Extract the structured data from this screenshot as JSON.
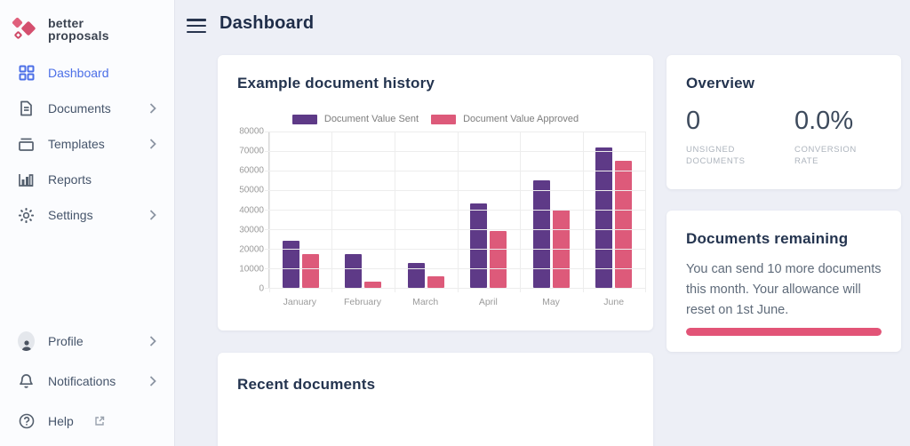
{
  "app": {
    "brand_line1": "better",
    "brand_line2": "proposals"
  },
  "header": {
    "title": "Dashboard"
  },
  "sidebar": {
    "items": [
      {
        "label": "Dashboard",
        "icon": "grid-icon",
        "active": true,
        "chevron": false
      },
      {
        "label": "Documents",
        "icon": "document-icon",
        "active": false,
        "chevron": true
      },
      {
        "label": "Templates",
        "icon": "archive-icon",
        "active": false,
        "chevron": true
      },
      {
        "label": "Reports",
        "icon": "bar-chart-icon",
        "active": false,
        "chevron": false
      },
      {
        "label": "Settings",
        "icon": "gear-icon",
        "active": false,
        "chevron": true
      }
    ],
    "bottom_items": [
      {
        "label": "Profile",
        "icon": "avatar-icon",
        "chevron": true,
        "external": false
      },
      {
        "label": "Notifications",
        "icon": "bell-icon",
        "chevron": true,
        "external": false
      },
      {
        "label": "Help",
        "icon": "help-icon",
        "chevron": false,
        "external": true
      }
    ]
  },
  "chart_card": {
    "title": "Example document history"
  },
  "chart_data": {
    "type": "bar",
    "title": "Example document history",
    "categories": [
      "January",
      "February",
      "March",
      "April",
      "May",
      "June"
    ],
    "series": [
      {
        "name": "Document Value Sent",
        "color": "#5e3a87",
        "values": [
          24000,
          17500,
          12800,
          43000,
          55000,
          72000
        ]
      },
      {
        "name": "Document Value Approved",
        "color": "#dd5a7a",
        "values": [
          17500,
          3000,
          6000,
          29000,
          40000,
          65000
        ]
      }
    ],
    "xlabel": "",
    "ylabel": "",
    "ylim": [
      0,
      80000
    ],
    "ytick_step": 10000,
    "grid": true,
    "legend_position": "top"
  },
  "overview": {
    "title": "Overview",
    "stats": [
      {
        "value": "0",
        "label": "UNSIGNED DOCUMENTS"
      },
      {
        "value": "0.0%",
        "label": "CONVERSION RATE"
      }
    ]
  },
  "documents_remaining": {
    "title": "Documents remaining",
    "body": "You can send 10 more documents this month. Your allowance will reset on 1st June.",
    "progress_percent": 100,
    "progress_color": "#e25477"
  },
  "recent_documents": {
    "title": "Recent documents"
  },
  "colors": {
    "accent_blue": "#4c6fe7",
    "bar_sent": "#5e3a87",
    "bar_approved": "#dd5a7a",
    "brand_pink": "#d44f6e",
    "background": "#edeff6",
    "heading_navy": "#24344f"
  }
}
